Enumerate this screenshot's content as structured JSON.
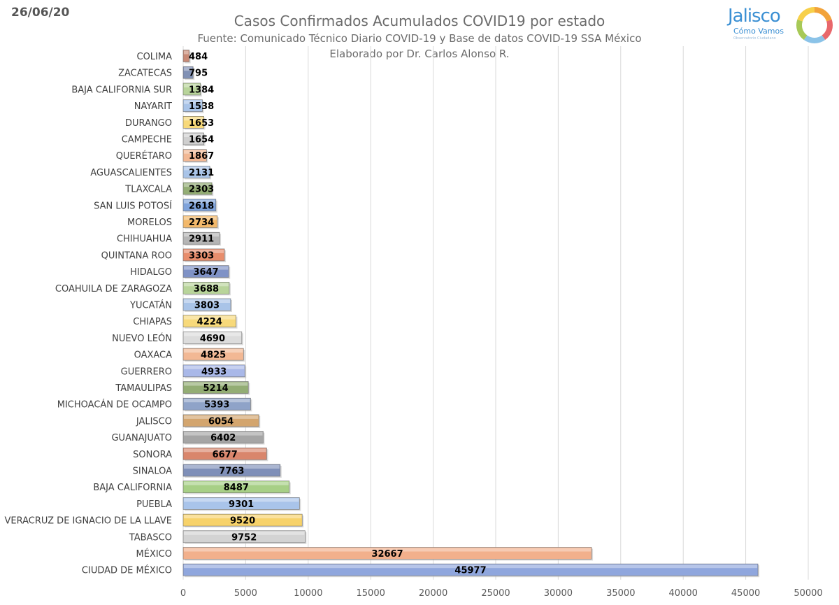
{
  "header": {
    "date": "26/06/20",
    "title": "Casos Confirmados Acumulados COVID19 por estado",
    "source": "Fuente: Comunicado Técnico Diario COVID-19 y Base de datos COVID-19 SSA México",
    "author": "Elaborado por Dr. Carlos Alonso R."
  },
  "logo": {
    "word": "Jalisco",
    "sub": "Cómo Vamos",
    "tag": "Observatorio Ciudadano",
    "ring_colors": [
      "#f2a33a",
      "#e8676b",
      "#8bc3e8",
      "#a7c957",
      "#f7d04a"
    ]
  },
  "chart_data": {
    "type": "bar",
    "orientation": "horizontal",
    "categories": [
      "COLIMA",
      "ZACATECAS",
      "BAJA CALIFORNIA SUR",
      "NAYARIT",
      "DURANGO",
      "CAMPECHE",
      "QUERÉTARO",
      "AGUASCALIENTES",
      "TLAXCALA",
      "SAN LUIS POTOSÍ",
      "MORELOS",
      "CHIHUAHUA",
      "QUINTANA ROO",
      "HIDALGO",
      "COAHUILA DE ZARAGOZA",
      "YUCATÁN",
      "CHIAPAS",
      "NUEVO LEÓN",
      "OAXACA",
      "GUERRERO",
      "TAMAULIPAS",
      "MICHOACÁN DE OCAMPO",
      "JALISCO",
      "GUANAJUATO",
      "SONORA",
      "SINALOA",
      "BAJA CALIFORNIA",
      "PUEBLA",
      "VERACRUZ DE IGNACIO DE LA LLAVE",
      "TABASCO",
      "MÉXICO",
      "CIUDAD DE MÉXICO"
    ],
    "values": [
      484,
      795,
      1384,
      1538,
      1653,
      1654,
      1867,
      2131,
      2303,
      2618,
      2734,
      2911,
      3303,
      3647,
      3688,
      3803,
      4224,
      4690,
      4825,
      4933,
      5214,
      5393,
      6054,
      6402,
      6677,
      7763,
      8487,
      9301,
      9520,
      9752,
      32667,
      45977
    ],
    "colors": [
      "#c98a76",
      "#8191b5",
      "#b8d49a",
      "#a9c4e8",
      "#f7d97a",
      "#cfcfcf",
      "#f2b894",
      "#a9c4e8",
      "#93ad74",
      "#7fa3db",
      "#f2b86a",
      "#b5b5b5",
      "#e88d6c",
      "#7f92c6",
      "#b8d49a",
      "#a9c4e8",
      "#f7d97a",
      "#dcdcdc",
      "#f2b894",
      "#a9b8e8",
      "#93ad74",
      "#8fa3c8",
      "#d3a56e",
      "#a5a5a5",
      "#d9866c",
      "#7f8fb8",
      "#a7cf86",
      "#a9c4ea",
      "#f7d26a",
      "#d3d3d3",
      "#f2b08c",
      "#8fa6dd"
    ],
    "xlim": [
      0,
      50000
    ],
    "xticks": [
      0,
      5000,
      10000,
      15000,
      20000,
      25000,
      30000,
      35000,
      40000,
      45000,
      50000
    ],
    "grid": true,
    "legend": "none"
  }
}
